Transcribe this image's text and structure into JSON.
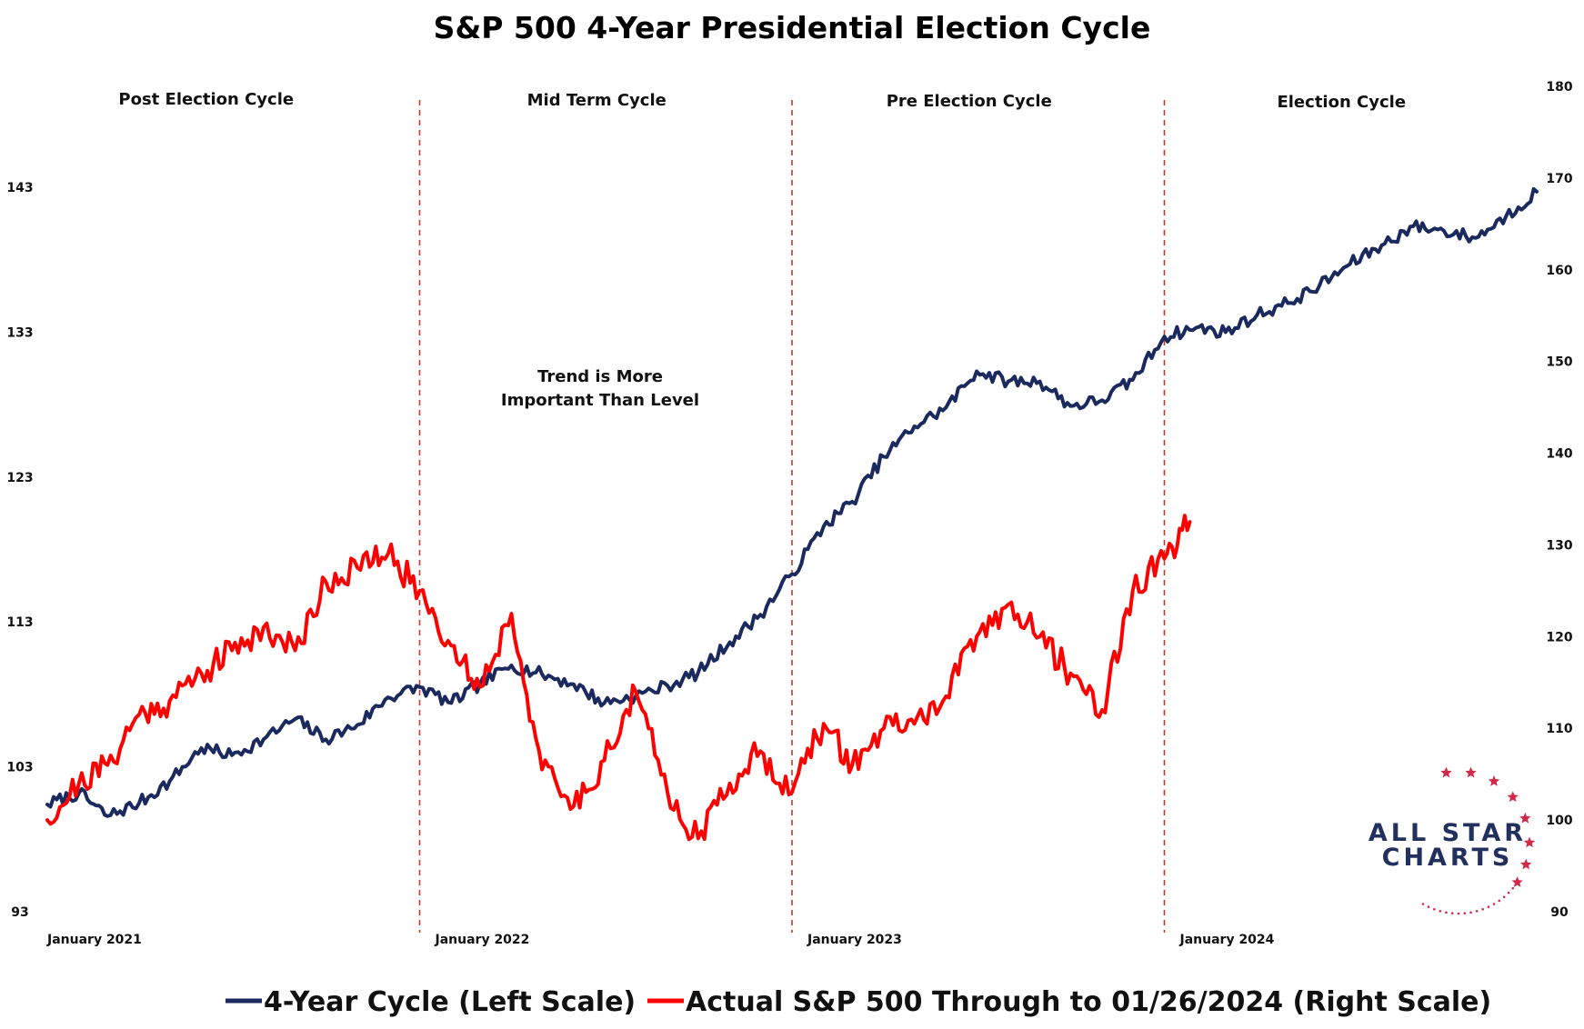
{
  "chart_data": {
    "type": "line",
    "title": "S&P 500 4-Year Presidential Election Cycle",
    "phases": [
      "Post Election Cycle",
      "Mid Term Cycle",
      "Pre Election Cycle",
      "Election Cycle"
    ],
    "annotation": [
      "Trend is More",
      "Important Than Level"
    ],
    "x_ticks": [
      "January 2021",
      "January 2022",
      "January 2023",
      "January 2024"
    ],
    "x_range": [
      "2021-01-01",
      "2024-12-31"
    ],
    "phase_boundaries": [
      "2022-01-01",
      "2023-01-01",
      "2024-01-01"
    ],
    "left_axis": {
      "ticks": [
        "93",
        "103",
        "113",
        "123",
        "133",
        "143"
      ],
      "range": [
        93,
        143
      ]
    },
    "right_axis": {
      "ticks": [
        "90",
        "100",
        "110",
        "120",
        "130",
        "140",
        "150",
        "160",
        "170",
        "180"
      ],
      "range": [
        90,
        180
      ]
    },
    "colors": {
      "cycle": "#1b2a5e",
      "actual": "#ff0000",
      "divider": "#c0392b",
      "logo_star": "#d1294a",
      "logo_text": "#22305e"
    },
    "series": [
      {
        "name": "4-Year Cycle (Left Scale)",
        "axis": "left",
        "points": [
          [
            "2021-01-01",
            100.4
          ],
          [
            "2021-02-01",
            101.2
          ],
          [
            "2021-03-01",
            99.6
          ],
          [
            "2021-04-01",
            100.5
          ],
          [
            "2021-05-01",
            102.0
          ],
          [
            "2021-06-01",
            104.3
          ],
          [
            "2021-07-01",
            103.8
          ],
          [
            "2021-08-01",
            104.9
          ],
          [
            "2021-09-01",
            106.3
          ],
          [
            "2021-10-01",
            104.9
          ],
          [
            "2021-11-01",
            105.9
          ],
          [
            "2021-12-01",
            107.8
          ],
          [
            "2022-01-01",
            108.5
          ],
          [
            "2022-02-01",
            107.4
          ],
          [
            "2022-03-01",
            108.7
          ],
          [
            "2022-04-01",
            110.0
          ],
          [
            "2022-05-01",
            109.4
          ],
          [
            "2022-06-01",
            108.7
          ],
          [
            "2022-07-01",
            107.4
          ],
          [
            "2022-08-01",
            107.9
          ],
          [
            "2022-09-01",
            108.6
          ],
          [
            "2022-10-01",
            109.5
          ],
          [
            "2022-11-01",
            111.6
          ],
          [
            "2022-12-01",
            113.5
          ],
          [
            "2023-01-01",
            116.3
          ],
          [
            "2023-02-01",
            119.6
          ],
          [
            "2023-03-01",
            121.3
          ],
          [
            "2023-04-01",
            124.4
          ],
          [
            "2023-05-01",
            126.5
          ],
          [
            "2023-06-01",
            127.8
          ],
          [
            "2023-07-01",
            130.3
          ],
          [
            "2023-08-01",
            129.6
          ],
          [
            "2023-09-01",
            129.6
          ],
          [
            "2023-10-01",
            127.9
          ],
          [
            "2023-11-01",
            128.3
          ],
          [
            "2023-12-01",
            129.7
          ],
          [
            "2024-01-01",
            132.7
          ],
          [
            "2024-02-01",
            133.3
          ],
          [
            "2024-03-01",
            133.0
          ],
          [
            "2024-04-01",
            134.2
          ],
          [
            "2024-05-01",
            135.0
          ],
          [
            "2024-06-01",
            136.2
          ],
          [
            "2024-07-01",
            137.7
          ],
          [
            "2024-08-01",
            139.0
          ],
          [
            "2024-09-01",
            140.3
          ],
          [
            "2024-10-01",
            140.0
          ],
          [
            "2024-11-01",
            139.5
          ],
          [
            "2024-12-01",
            141.0
          ],
          [
            "2024-12-31",
            142.7
          ]
        ]
      },
      {
        "name": "Actual S&P 500 Through to 01/26/2024 (Right Scale)",
        "axis": "right",
        "points": [
          [
            "2021-01-01",
            100.0
          ],
          [
            "2021-02-01",
            104.0
          ],
          [
            "2021-03-01",
            106.0
          ],
          [
            "2021-04-01",
            111.5
          ],
          [
            "2021-05-01",
            113.0
          ],
          [
            "2021-06-01",
            116.0
          ],
          [
            "2021-07-01",
            118.5
          ],
          [
            "2021-08-01",
            121.0
          ],
          [
            "2021-09-01",
            118.5
          ],
          [
            "2021-10-01",
            126.0
          ],
          [
            "2021-11-01",
            127.5
          ],
          [
            "2021-12-01",
            129.0
          ],
          [
            "2022-01-01",
            125.0
          ],
          [
            "2022-02-01",
            119.0
          ],
          [
            "2022-03-01",
            114.5
          ],
          [
            "2022-04-01",
            122.5
          ],
          [
            "2022-05-01",
            105.5
          ],
          [
            "2022-06-01",
            101.5
          ],
          [
            "2022-07-01",
            106.5
          ],
          [
            "2022-08-01",
            114.0
          ],
          [
            "2022-09-01",
            103.0
          ],
          [
            "2022-10-01",
            98.0
          ],
          [
            "2022-11-01",
            104.0
          ],
          [
            "2022-12-01",
            107.5
          ],
          [
            "2023-01-01",
            103.0
          ],
          [
            "2023-02-01",
            110.5
          ],
          [
            "2023-03-01",
            106.0
          ],
          [
            "2023-04-01",
            110.0
          ],
          [
            "2023-05-01",
            110.5
          ],
          [
            "2023-06-01",
            113.5
          ],
          [
            "2023-07-01",
            120.0
          ],
          [
            "2023-08-01",
            123.5
          ],
          [
            "2023-09-01",
            120.0
          ],
          [
            "2023-10-01",
            116.0
          ],
          [
            "2023-11-01",
            112.0
          ],
          [
            "2023-12-01",
            125.0
          ],
          [
            "2024-01-01",
            128.5
          ],
          [
            "2024-01-26",
            132.5
          ]
        ]
      }
    ],
    "legend_position": "bottom",
    "grid": false
  },
  "logo": {
    "line1": "ALL STAR",
    "line2": "CHARTS"
  }
}
